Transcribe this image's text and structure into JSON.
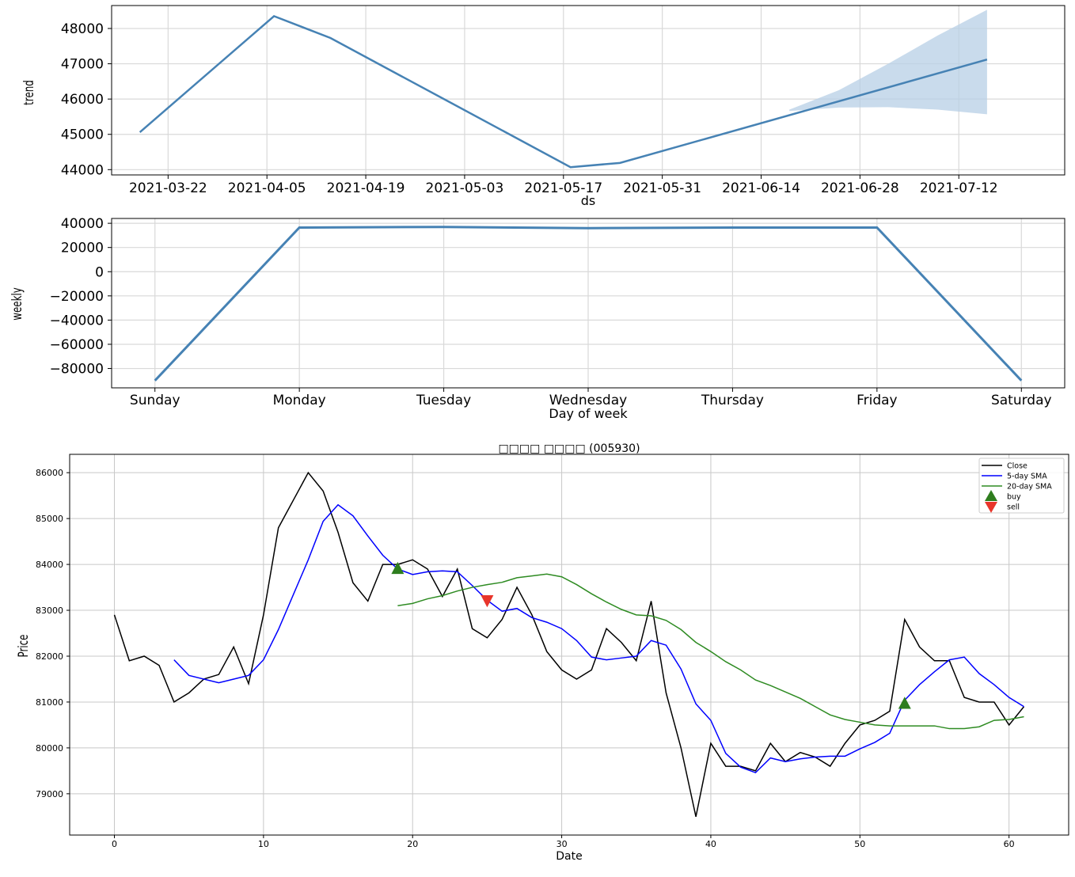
{
  "chart_data": [
    {
      "type": "line",
      "xlabel": "ds",
      "ylabel": "trend",
      "x_ticks": [
        "2021-03-22",
        "2021-04-05",
        "2021-04-19",
        "2021-05-03",
        "2021-05-17",
        "2021-05-31",
        "2021-06-14",
        "2021-06-28",
        "2021-07-12"
      ],
      "y_ticks": [
        44000,
        45000,
        46000,
        47000,
        48000
      ],
      "xlim": [
        "2021-03-14",
        "2021-07-27"
      ],
      "ylim": [
        43850,
        48650
      ],
      "grid": true,
      "line_color": "#4682b4",
      "band_color": "#b7cfe6",
      "series": [
        {
          "x": [
            "2021-03-18",
            "2021-04-06",
            "2021-04-14",
            "2021-05-18",
            "2021-05-25",
            "2021-07-16"
          ],
          "y": [
            45060,
            48350,
            47730,
            44070,
            44190,
            47120
          ]
        }
      ],
      "uncertainty_band": {
        "x": [
          "2021-06-18",
          "2021-06-25",
          "2021-07-02",
          "2021-07-09",
          "2021-07-16"
        ],
        "lower": [
          45660,
          45760,
          45770,
          45700,
          45570
        ],
        "upper": [
          45700,
          46250,
          47000,
          47800,
          48530
        ]
      }
    },
    {
      "type": "line",
      "xlabel": "Day of week",
      "ylabel": "weekly",
      "categories": [
        "Sunday",
        "Monday",
        "Tuesday",
        "Wednesday",
        "Thursday",
        "Friday",
        "Saturday"
      ],
      "values": [
        -90000,
        36500,
        37000,
        36000,
        36500,
        36500,
        -90000
      ],
      "y_ticks": [
        -80000,
        -60000,
        -40000,
        -20000,
        0,
        20000,
        40000
      ],
      "y_tick_labels": [
        "−80000",
        "−60000",
        "−40000",
        "−20000",
        "0",
        "20000",
        "40000"
      ],
      "ylim": [
        -96000,
        44000
      ],
      "grid": true,
      "line_color": "#4682b4"
    },
    {
      "type": "line",
      "title": "□□□□ □□□□ (005930)",
      "xlabel": "Date",
      "ylabel": "Price",
      "x_ticks": [
        0,
        10,
        20,
        30,
        40,
        50,
        60
      ],
      "y_ticks": [
        79000,
        80000,
        81000,
        82000,
        83000,
        84000,
        85000,
        86000
      ],
      "xlim": [
        -3,
        64
      ],
      "ylim": [
        78100,
        86400
      ],
      "grid": true,
      "legend_position": "top-right",
      "series": [
        {
          "name": "Close",
          "color": "#000000",
          "x_start": 0,
          "values": [
            82900,
            81900,
            82000,
            81800,
            81000,
            81200,
            81500,
            81600,
            82200,
            81400,
            82900,
            84800,
            85400,
            86000,
            85600,
            84700,
            83600,
            83200,
            84000,
            84000,
            84100,
            83900,
            83300,
            83900,
            82600,
            82400,
            82800,
            83500,
            82900,
            82100,
            81700,
            81500,
            81700,
            82600,
            82300,
            81900,
            83200,
            81200,
            80000,
            78500,
            80100,
            79600,
            79600,
            79500,
            80100,
            79700,
            79900,
            79800,
            79600,
            80100,
            80500,
            80600,
            80800,
            82800,
            82200,
            81900,
            81900,
            81100,
            81000,
            81000,
            80500,
            80900
          ]
        },
        {
          "name": "5-day SMA",
          "color": "#0000ff",
          "x_start": 4,
          "values": [
            81920,
            81580,
            81500,
            81420,
            81500,
            81580,
            81920,
            82580,
            83340,
            84100,
            84940,
            85300,
            85060,
            84620,
            84200,
            83900,
            83780,
            83840,
            83860,
            83840,
            83540,
            83220,
            82980,
            83040,
            82840,
            82740,
            82600,
            82340,
            81980,
            81920,
            81960,
            82000,
            82340,
            82240,
            81720,
            80960,
            80600,
            79880,
            79580,
            79460,
            79780,
            79700,
            79760,
            79800,
            79820,
            79820,
            79980,
            80120,
            80320,
            81040,
            81380,
            81660,
            81920,
            81980,
            81620,
            81380,
            81100,
            80900
          ]
        },
        {
          "name": "20-day SMA",
          "color": "#2e8b22",
          "x_start": 19,
          "values": [
            83100,
            83150,
            83250,
            83320,
            83420,
            83500,
            83560,
            83610,
            83710,
            83750,
            83790,
            83730,
            83560,
            83360,
            83180,
            83020,
            82900,
            82880,
            82780,
            82580,
            82300,
            82100,
            81880,
            81700,
            81480,
            81360,
            81220,
            81080,
            80900,
            80720,
            80620,
            80560,
            80500,
            80480,
            80480,
            80480,
            80480,
            80420,
            80420,
            80460,
            80600,
            80620,
            80680
          ]
        }
      ],
      "markers": [
        {
          "name": "buy",
          "color": "#2e7d1e",
          "shape": "triangle-up",
          "points": [
            {
              "x": 19,
              "y": 83900
            },
            {
              "x": 53,
              "y": 80960
            }
          ]
        },
        {
          "name": "sell",
          "color": "#e8352b",
          "shape": "triangle-down",
          "points": [
            {
              "x": 25,
              "y": 83220
            }
          ]
        }
      ]
    }
  ]
}
